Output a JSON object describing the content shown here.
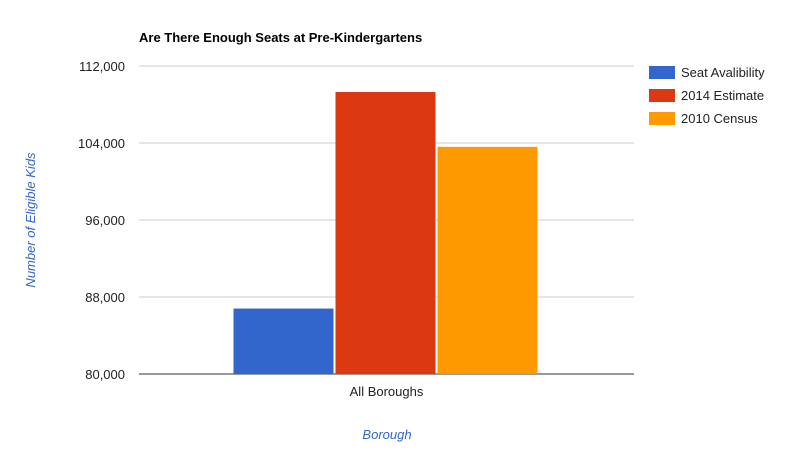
{
  "chart_data": {
    "type": "bar",
    "title": "Are There Enough Seats at Pre-Kindergartens",
    "xlabel": "Borough",
    "ylabel": "Number of Eligible Kids",
    "categories": [
      "All Boroughs"
    ],
    "series": [
      {
        "name": "Seat Avalibility",
        "values": [
          86800
        ],
        "color": "#3366cc"
      },
      {
        "name": "2014 Estimate",
        "values": [
          109300
        ],
        "color": "#dc3912"
      },
      {
        "name": "2010 Census",
        "values": [
          103600
        ],
        "color": "#ff9900"
      }
    ],
    "ylim": [
      80000,
      112000
    ],
    "yticks": [
      80000,
      88000,
      96000,
      104000,
      112000
    ],
    "ytick_labels": [
      "80,000",
      "88,000",
      "96,000",
      "104,000",
      "112,000"
    ],
    "grid": true,
    "legend_position": "right"
  }
}
